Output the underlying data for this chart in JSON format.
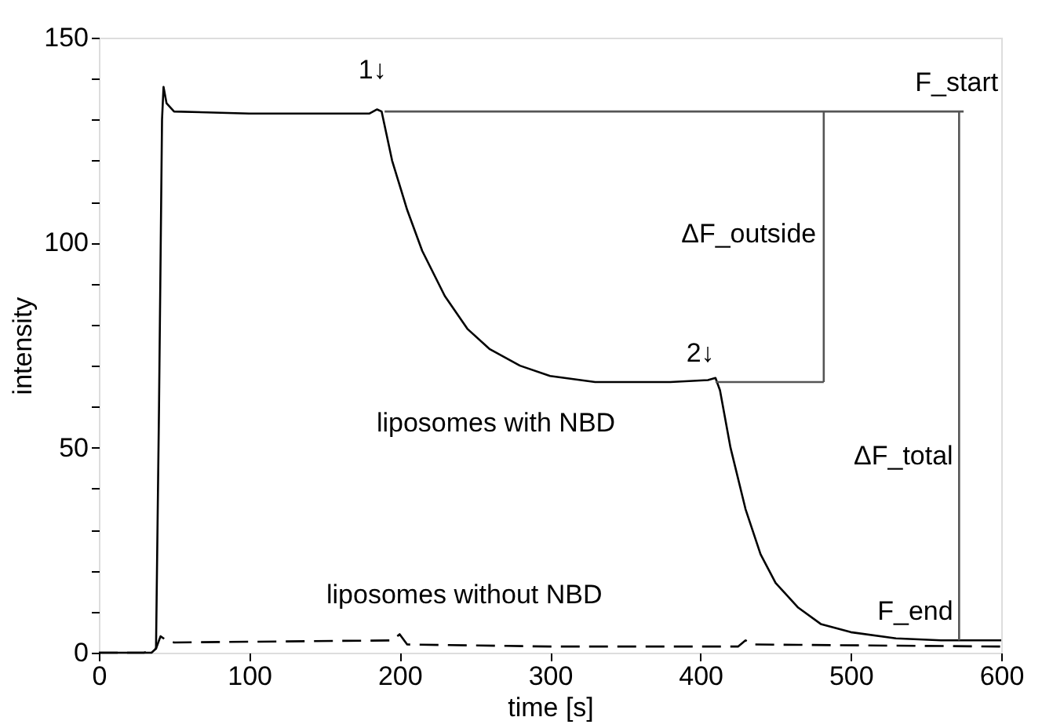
{
  "chart_data": {
    "type": "line",
    "xlabel": "time [s]",
    "ylabel": "intensity",
    "xlim": [
      0,
      600
    ],
    "xticks": [
      0,
      100,
      200,
      300,
      400,
      500,
      600
    ],
    "ylim": [
      0,
      150
    ],
    "yticks": [
      0,
      {
        "value": 10,
        "label": null
      },
      {
        "value": 20,
        "label": null
      },
      {
        "value": 30,
        "label": null
      },
      {
        "value": 40,
        "label": null
      },
      50,
      {
        "value": 60,
        "label": null
      },
      {
        "value": 70,
        "label": null
      },
      {
        "value": 80,
        "label": null
      },
      {
        "value": 90,
        "label": null
      },
      100,
      {
        "value": 110,
        "label": null
      },
      {
        "value": 120,
        "label": null
      },
      {
        "value": 130,
        "label": null
      },
      {
        "value": 140,
        "label": null
      },
      150
    ],
    "grid": false,
    "legend": false,
    "series": [
      {
        "name": "liposomes with NBD",
        "color": "#000000",
        "line_style": "solid",
        "x": [
          0,
          35,
          38,
          40,
          42,
          43,
          45,
          50,
          100,
          180,
          185,
          188,
          195,
          205,
          215,
          230,
          245,
          260,
          280,
          300,
          330,
          380,
          405,
          410,
          413,
          420,
          430,
          440,
          450,
          465,
          480,
          500,
          530,
          560,
          600
        ],
        "values": [
          0,
          0,
          1,
          60,
          130,
          138,
          134,
          132,
          131.5,
          131.5,
          132.5,
          132,
          120,
          108,
          98,
          87,
          79,
          74,
          70,
          67.5,
          66,
          66,
          66.5,
          67,
          64,
          50,
          35,
          24,
          17,
          11,
          7,
          5,
          3.5,
          3,
          3
        ]
      },
      {
        "name": "liposomes without NBD",
        "color": "#000000",
        "line_style": "dashed",
        "x": [
          0,
          30,
          38,
          41,
          45,
          50,
          195,
          200,
          205,
          300,
          425,
          430,
          435,
          600
        ],
        "values": [
          0,
          0,
          1,
          4,
          3,
          2.5,
          3,
          4.5,
          2,
          1.5,
          1.5,
          3,
          2,
          1.5
        ]
      },
      {
        "color": "#555555",
        "line_style": "solid",
        "x": [
          190,
          575
        ],
        "values": [
          132,
          132
        ]
      },
      {
        "color": "#555555",
        "line_style": "solid",
        "x": [
          410,
          482
        ],
        "values": [
          66,
          66
        ]
      },
      {
        "color": "#555555",
        "line_style": "solid",
        "x": [
          482,
          482
        ],
        "values": [
          66,
          132
        ]
      },
      {
        "color": "#555555",
        "line_style": "solid",
        "x": [
          572,
          572
        ],
        "values": [
          3,
          132
        ]
      }
    ],
    "annotations": [
      "1↓",
      "2↓",
      "F_start",
      "ΔF_outside",
      "ΔF_total",
      "F_end"
    ]
  }
}
